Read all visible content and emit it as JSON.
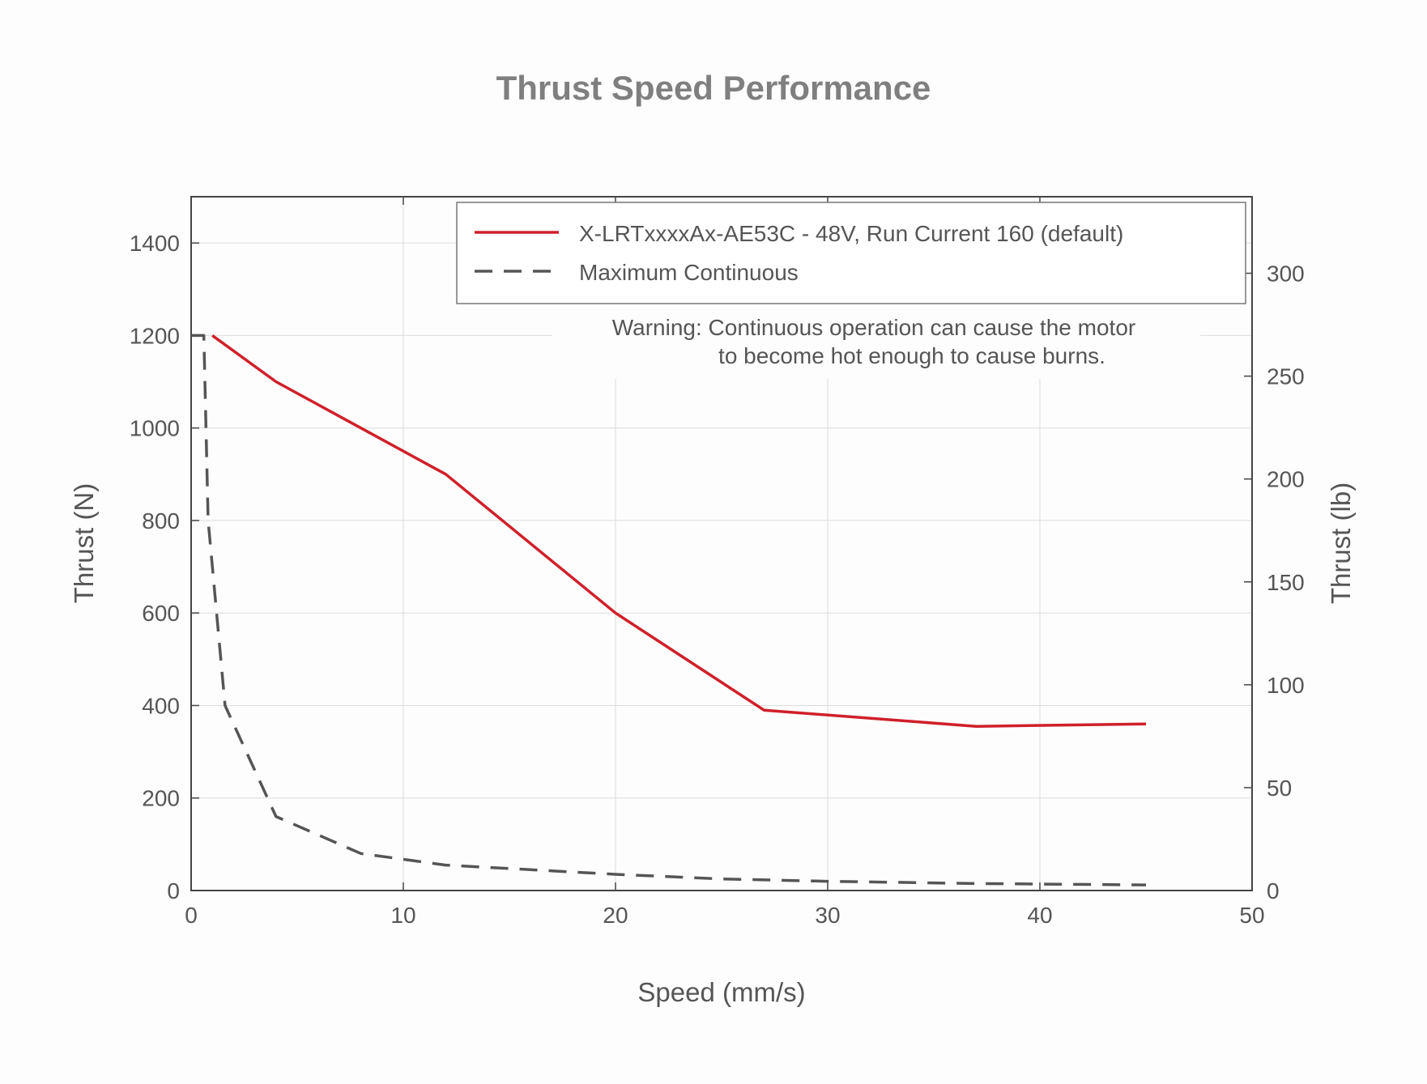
{
  "chart_data": {
    "type": "line",
    "title": "Thrust Speed Performance",
    "xlabel": "Speed (mm/s)",
    "ylabel": "Thrust (N)",
    "y2label": "Thrust (lb)",
    "xlim": [
      0,
      50
    ],
    "ylim": [
      0,
      1500
    ],
    "y2lim": [
      0,
      337.2
    ],
    "xticks": [
      "0",
      "10",
      "20",
      "30",
      "40",
      "50"
    ],
    "yticks": [
      "0",
      "200",
      "400",
      "600",
      "800",
      "1000",
      "1200",
      "1400"
    ],
    "y2ticks": [
      "0",
      "50",
      "100",
      "150",
      "200",
      "250",
      "300"
    ],
    "grid": true,
    "legend_position": "top-right",
    "series": [
      {
        "name": "X-LRTxxxxAx-AE53C - 48V, Run Current 160 (default)",
        "style": "solid",
        "color": "#d0202a",
        "x": [
          1,
          4,
          8,
          12,
          20,
          27,
          37,
          45
        ],
        "y": [
          1200,
          1100,
          1000,
          900,
          600,
          390,
          355,
          360
        ]
      },
      {
        "name": "Maximum Continuous",
        "style": "dashed",
        "color": "#555555",
        "x": [
          0,
          0.6,
          0.8,
          1.6,
          4,
          8,
          12,
          16,
          20,
          25,
          30,
          37,
          45
        ],
        "y": [
          1200,
          1200,
          800,
          400,
          160,
          80,
          55,
          45,
          35,
          25,
          20,
          15,
          12
        ]
      }
    ],
    "annotations": [
      "Warning: Continuous operation can cause the motor",
      "to become hot enough to cause burns."
    ]
  }
}
